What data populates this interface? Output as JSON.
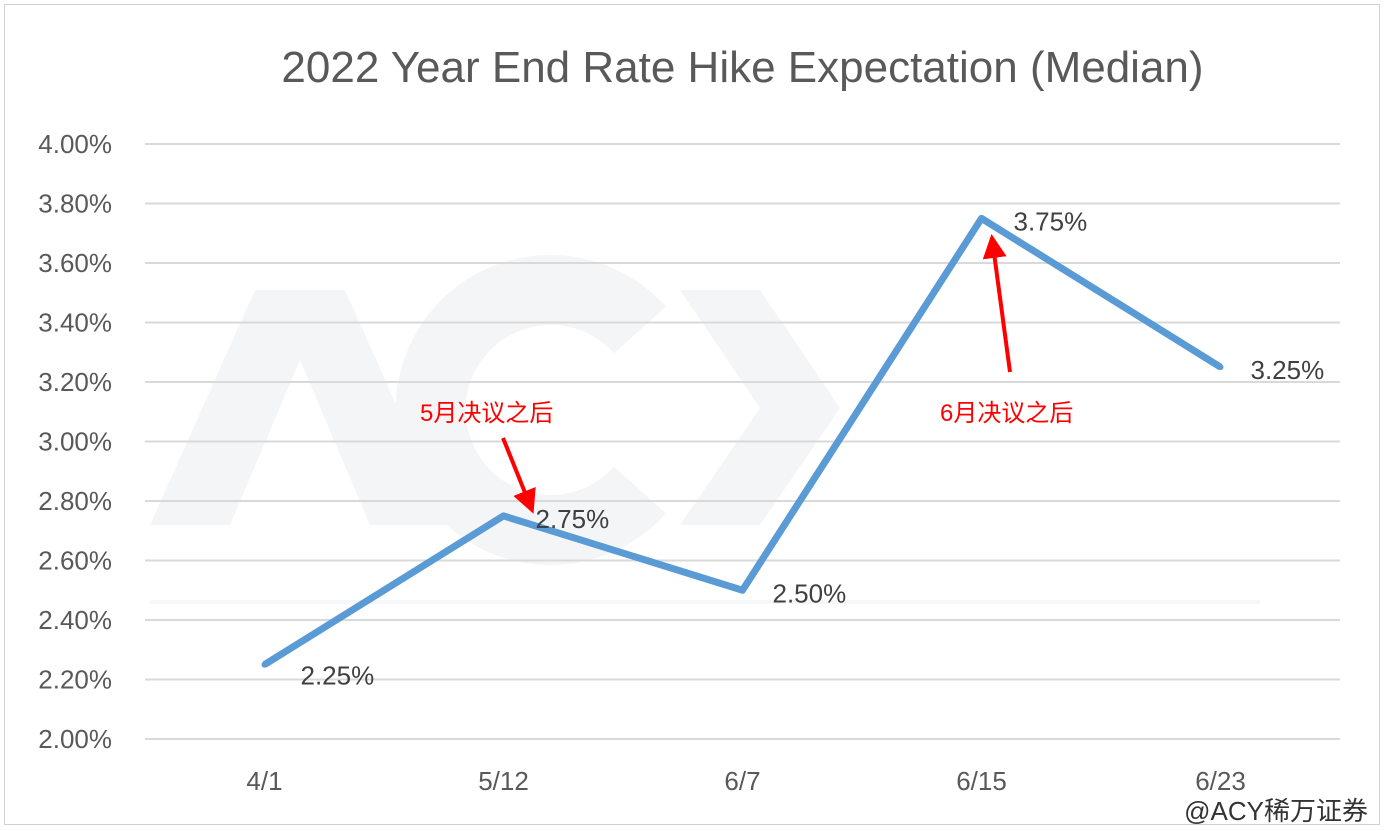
{
  "chart_data": {
    "type": "line",
    "title": "2022 Year End Rate Hike Expectation (Median)",
    "categories": [
      "4/1",
      "5/12",
      "6/7",
      "6/15",
      "6/23"
    ],
    "series": [
      {
        "name": "Median",
        "values": [
          2.25,
          2.75,
          2.5,
          3.75,
          3.25
        ],
        "color": "#5b9bd5"
      }
    ],
    "data_labels": [
      "2.25%",
      "2.75%",
      "2.50%",
      "3.75%",
      "3.25%"
    ],
    "ylim": [
      2.0,
      4.0
    ],
    "yticks": [
      "2.00%",
      "2.20%",
      "2.40%",
      "2.60%",
      "2.80%",
      "3.00%",
      "3.20%",
      "3.40%",
      "3.60%",
      "3.80%",
      "4.00%"
    ],
    "grid": true,
    "annotations": [
      {
        "text": "5月决议之后",
        "target": "5/12",
        "color": "#ff0000"
      },
      {
        "text": "6月决议之后",
        "target": "6/15",
        "color": "#ff0000"
      }
    ]
  },
  "watermark": {
    "logo": "ACY 证券 SECURITIES",
    "credit": "@ACY稀万证券"
  }
}
